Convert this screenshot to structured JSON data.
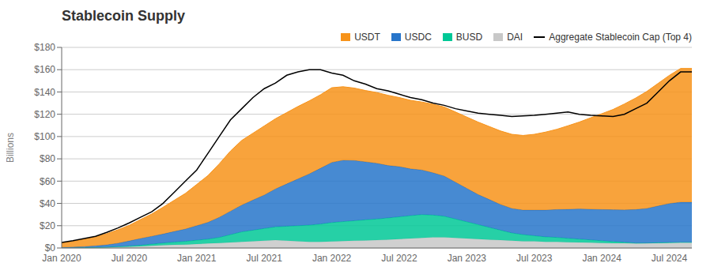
{
  "chart_data": {
    "type": "area",
    "title": "Stablecoin Supply",
    "ylabel": "Billions",
    "stacked": true,
    "grid": "y",
    "legend": "upper right",
    "categories": [
      "Jan 2020",
      null,
      null,
      null,
      null,
      null,
      "Jul 2020",
      null,
      null,
      null,
      null,
      null,
      "Jan 2021",
      null,
      null,
      null,
      null,
      null,
      "Jul 2021",
      null,
      null,
      null,
      null,
      null,
      "Jan 2022",
      null,
      null,
      null,
      null,
      null,
      "Jul 2022",
      null,
      null,
      null,
      null,
      null,
      "Jan 2023",
      null,
      null,
      null,
      null,
      null,
      "Jul 2023",
      null,
      null,
      null,
      null,
      null,
      "Jan 2024",
      null,
      null,
      null,
      null,
      null,
      "Jul 2024",
      null,
      null
    ],
    "ylim": [
      0,
      180
    ],
    "yticks": [
      {
        "value": 0,
        "label": "$0"
      },
      {
        "value": 20,
        "label": "$20"
      },
      {
        "value": 40,
        "label": "$40"
      },
      {
        "value": 60,
        "label": "$60"
      },
      {
        "value": 80,
        "label": "$80"
      },
      {
        "value": 100,
        "label": "$100"
      },
      {
        "value": 120,
        "label": "$120"
      },
      {
        "value": 140,
        "label": "$140"
      },
      {
        "value": 160,
        "label": "$160"
      },
      {
        "value": 180,
        "label": "$180"
      }
    ],
    "series": [
      {
        "name": "DAI",
        "type": "area",
        "color": "#C8C8C8",
        "values": [
          0.1,
          0.15,
          0.2,
          0.3,
          0.5,
          0.8,
          1.0,
          1.5,
          2.0,
          2.5,
          2.8,
          3.0,
          3.5,
          4.0,
          4.5,
          5.0,
          5.5,
          6.0,
          6.5,
          7.0,
          6.5,
          6.0,
          5.5,
          5.5,
          5.8,
          6.2,
          6.5,
          6.8,
          7.0,
          7.5,
          8.0,
          8.5,
          9.0,
          9.5,
          9.5,
          9.0,
          8.5,
          8.0,
          7.5,
          7.0,
          6.5,
          6.0,
          6.0,
          5.5,
          5.5,
          5.2,
          5.0,
          4.8,
          4.5,
          4.3,
          4.2,
          4.0,
          4.2,
          4.5,
          4.8,
          5.0,
          5.0
        ]
      },
      {
        "name": "BUSD",
        "type": "area",
        "color": "#00C896",
        "values": [
          0.0,
          0.0,
          0.1,
          0.2,
          0.3,
          0.5,
          0.8,
          1.0,
          1.5,
          2.0,
          2.5,
          3.0,
          3.5,
          4.0,
          5.0,
          7.0,
          9.0,
          10.0,
          11.0,
          12.0,
          13.0,
          14.0,
          15.0,
          16.0,
          17.0,
          17.5,
          18.0,
          18.5,
          19.0,
          19.5,
          20.0,
          20.5,
          21.0,
          20.0,
          19.0,
          17.0,
          15.0,
          13.0,
          11.0,
          9.0,
          7.0,
          6.0,
          5.0,
          4.5,
          4.0,
          3.5,
          3.0,
          2.5,
          2.0,
          1.5,
          1.0,
          0.5,
          0.3,
          0.2,
          0.1,
          0.1,
          0.1
        ]
      },
      {
        "name": "USDC",
        "type": "area",
        "color": "#2775CA",
        "values": [
          0.5,
          0.7,
          1.0,
          1.5,
          2.0,
          3.0,
          4.5,
          6.0,
          7.0,
          8.0,
          9.5,
          11.0,
          13.0,
          15.0,
          18.0,
          21.0,
          24.0,
          27.0,
          30.0,
          34.0,
          38.0,
          42.0,
          46.0,
          50.0,
          54.0,
          55.0,
          54.0,
          52.0,
          50.0,
          47.0,
          45.0,
          42.0,
          40.0,
          38.0,
          36.0,
          33.0,
          30.0,
          27.0,
          25.0,
          23.0,
          22.0,
          22.0,
          23.0,
          24.0,
          25.0,
          26.0,
          27.0,
          27.5,
          28.0,
          28.5,
          29.0,
          30.0,
          31.0,
          33.0,
          35.0,
          36.0,
          36.0
        ]
      },
      {
        "name": "USDT",
        "type": "area",
        "color": "#F7931A",
        "values": [
          4.0,
          5.0,
          6.5,
          8.0,
          10.0,
          12.0,
          14.0,
          17.0,
          20.0,
          24.0,
          28.0,
          32.0,
          37.0,
          42.0,
          48.0,
          54.0,
          58.0,
          60.0,
          62.0,
          63.0,
          64.0,
          65.0,
          65.5,
          66.0,
          67.0,
          66.0,
          65.0,
          64.0,
          63.5,
          63.0,
          62.0,
          61.5,
          61.0,
          61.5,
          62.0,
          63.0,
          64.0,
          65.0,
          65.5,
          66.0,
          66.5,
          67.0,
          68.0,
          70.0,
          72.0,
          75.0,
          78.0,
          82.0,
          86.0,
          90.0,
          95.0,
          100.0,
          105.0,
          110.0,
          115.0,
          120.0,
          120.0
        ]
      },
      {
        "name": "Aggregate Stablecoin Cap (Top 4)",
        "type": "line",
        "color": "#000000",
        "values": [
          5.0,
          6.5,
          8.5,
          10.5,
          14.0,
          18.0,
          22.5,
          27.5,
          32.5,
          40.0,
          50.0,
          60.0,
          70.0,
          85.0,
          100.0,
          115.0,
          125.0,
          135.0,
          143.0,
          148.0,
          155.0,
          158.0,
          160.0,
          160.0,
          157.0,
          155.0,
          150.0,
          147.0,
          143.0,
          141.0,
          138.0,
          135.0,
          133.0,
          130.0,
          128.0,
          125.0,
          123.0,
          121.0,
          120.0,
          119.0,
          118.0,
          118.5,
          119.0,
          120.0,
          121.0,
          122.0,
          120.0,
          119.0,
          118.5,
          118.0,
          120.0,
          125.0,
          130.0,
          140.0,
          150.0,
          158.0,
          158.0
        ]
      }
    ]
  }
}
